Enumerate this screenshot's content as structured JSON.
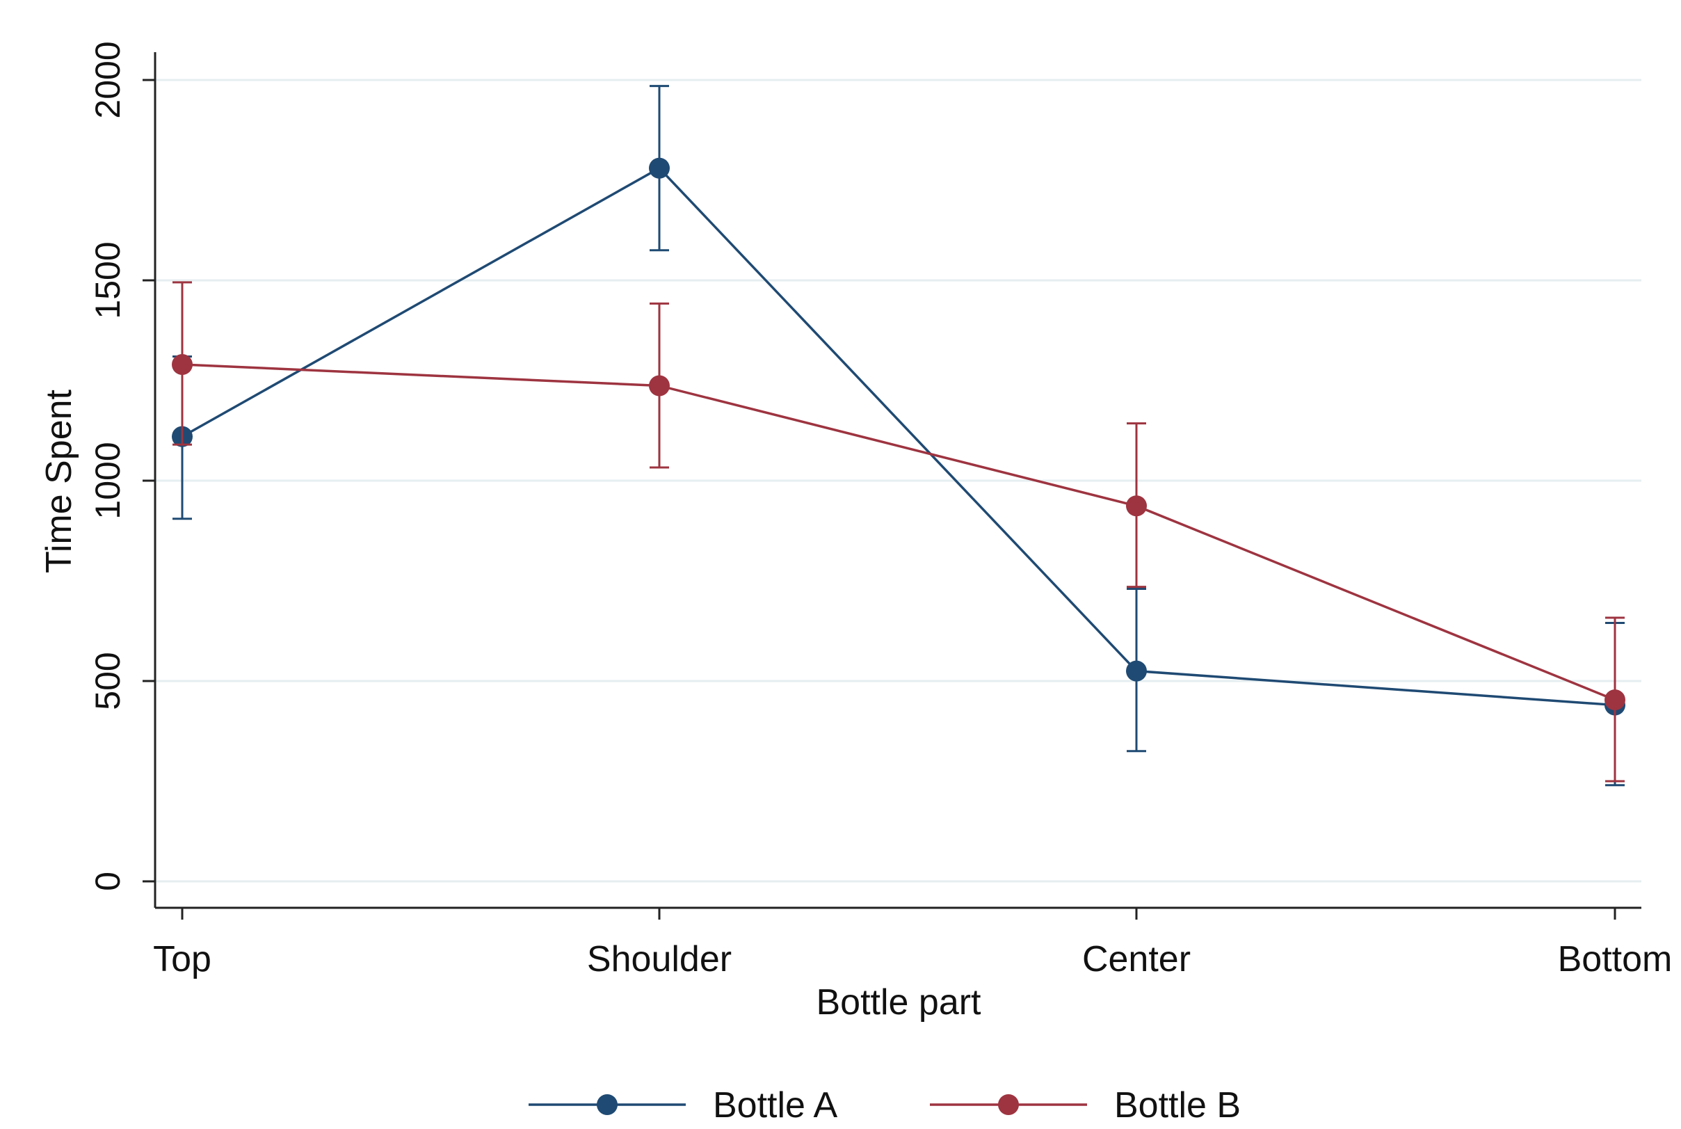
{
  "chart_data": {
    "type": "line",
    "title": "",
    "xlabel": "Bottle part",
    "ylabel": "Time Spent",
    "categories": [
      "Top",
      "Shoulder",
      "Center",
      "Bottom"
    ],
    "ylim": [
      0,
      2000
    ],
    "yticks": [
      0,
      500,
      1000,
      1500,
      2000
    ],
    "ytick_labels": [
      "0",
      "500",
      "1000",
      "1500",
      "2000"
    ],
    "grid": true,
    "legend_position": "bottom",
    "series": [
      {
        "name": "Bottle A",
        "color": "#1f4a73",
        "values": [
          1110,
          1780,
          525,
          440
        ],
        "ci_low": [
          905,
          1575,
          325,
          240
        ],
        "ci_high": [
          1310,
          1985,
          730,
          645
        ]
      },
      {
        "name": "Bottle B",
        "color": "#9e3440",
        "values": [
          1290,
          1237,
          937,
          453
        ],
        "ci_low": [
          1090,
          1033,
          735,
          250
        ],
        "ci_high": [
          1495,
          1442,
          1143,
          658
        ]
      }
    ]
  }
}
